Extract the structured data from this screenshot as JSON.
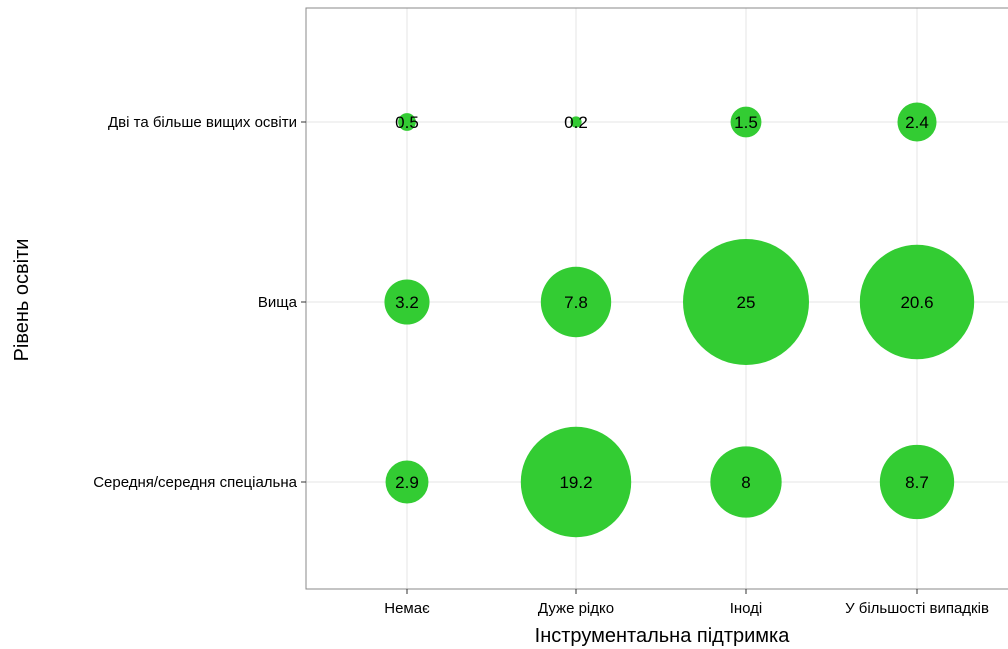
{
  "chart_data": {
    "type": "scatter",
    "title": "",
    "xlabel": "Інструментальна підтримка",
    "ylabel": "Рівень освіти",
    "x_categories": [
      "Немає",
      "Дуже рідко",
      "Іноді",
      "У більшості випадків"
    ],
    "y_categories": [
      "Середня/середня спеціальна",
      "Вища",
      "Дві та більше вищих освіти"
    ],
    "grid": true,
    "bubble_color": "#33cc33",
    "points": [
      {
        "x": "Немає",
        "y": "Дві та більше вищих освіти",
        "value": 0.5,
        "label": "0.5"
      },
      {
        "x": "Дуже рідко",
        "y": "Дві та більше вищих освіти",
        "value": 0.2,
        "label": "0.2"
      },
      {
        "x": "Іноді",
        "y": "Дві та більше вищих освіти",
        "value": 1.5,
        "label": "1.5"
      },
      {
        "x": "У більшості випадків",
        "y": "Дві та більше вищих освіти",
        "value": 2.4,
        "label": "2.4"
      },
      {
        "x": "Немає",
        "y": "Вища",
        "value": 3.2,
        "label": "3.2"
      },
      {
        "x": "Дуже рідко",
        "y": "Вища",
        "value": 7.8,
        "label": "7.8"
      },
      {
        "x": "Іноді",
        "y": "Вища",
        "value": 25,
        "label": "25"
      },
      {
        "x": "У більшості випадків",
        "y": "Вища",
        "value": 20.6,
        "label": "20.6"
      },
      {
        "x": "Немає",
        "y": "Середня/середня спеціальна",
        "value": 2.9,
        "label": "2.9"
      },
      {
        "x": "Дуже рідко",
        "y": "Середня/середня спеціальна",
        "value": 19.2,
        "label": "19.2"
      },
      {
        "x": "Іноді",
        "y": "Середня/середня спеціальна",
        "value": 8,
        "label": "8"
      },
      {
        "x": "У більшості випадків",
        "y": "Середня/середня спеціальна",
        "value": 8.7,
        "label": "8.7"
      }
    ]
  }
}
